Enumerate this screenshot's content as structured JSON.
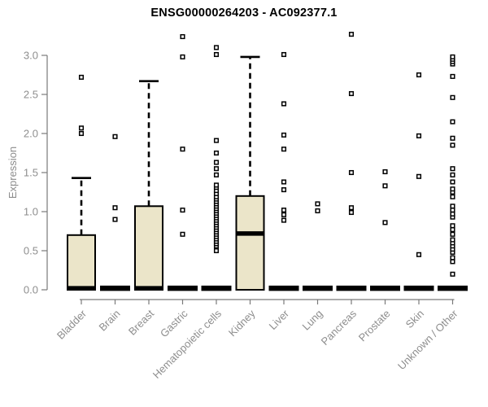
{
  "chart_data": {
    "type": "boxplot",
    "title": "ENSG00000264203 - AC092377.1",
    "ylabel": "Expression",
    "xlabel": "",
    "ylim": [
      0,
      3.0
    ],
    "ytick_labels": [
      "0.0",
      "0.5",
      "1.0",
      "1.5",
      "2.0",
      "2.5",
      "3.0"
    ],
    "grid": false,
    "legend": false,
    "categories": [
      "Bladder",
      "Brain",
      "Breast",
      "Gastric",
      "Hematopoietic cells",
      "Kidney",
      "Liver",
      "Lung",
      "Pancreas",
      "Prostate",
      "Skin",
      "Unknown / Other"
    ],
    "boxes": [
      {
        "category": "Bladder",
        "q1": 0,
        "median": 0.02,
        "q3": 0.7,
        "whisker_low": 0,
        "whisker_high": 1.43,
        "outliers": [
          2.0,
          2.07,
          2.72
        ]
      },
      {
        "category": "Brain",
        "q1": 0,
        "median": 0.02,
        "q3": 0.02,
        "whisker_low": 0,
        "whisker_high": 0.02,
        "outliers": [
          0.9,
          1.05,
          1.96
        ]
      },
      {
        "category": "Breast",
        "q1": 0,
        "median": 0.02,
        "q3": 1.07,
        "whisker_low": 0,
        "whisker_high": 2.67,
        "outliers": []
      },
      {
        "category": "Gastric",
        "q1": 0,
        "median": 0.02,
        "q3": 0.02,
        "whisker_low": 0,
        "whisker_high": 0.02,
        "outliers": [
          0.71,
          1.02,
          1.8,
          2.98,
          3.24
        ]
      },
      {
        "category": "Hematopoietic cells",
        "q1": 0,
        "median": 0.02,
        "q3": 0.02,
        "whisker_low": 0,
        "whisker_high": 0.02,
        "outliers": [
          0.5,
          0.56,
          0.59,
          0.62,
          0.65,
          0.68,
          0.71,
          0.74,
          0.77,
          0.8,
          0.83,
          0.86,
          0.89,
          0.92,
          0.95,
          0.98,
          1.01,
          1.04,
          1.07,
          1.1,
          1.13,
          1.16,
          1.19,
          1.23,
          1.27,
          1.31,
          1.34,
          1.47,
          1.55,
          1.63,
          1.75,
          1.91,
          3.01,
          3.1
        ]
      },
      {
        "category": "Kidney",
        "q1": 0,
        "median": 0.72,
        "q3": 1.2,
        "whisker_low": 0,
        "whisker_high": 2.98,
        "outliers": []
      },
      {
        "category": "Liver",
        "q1": 0,
        "median": 0.02,
        "q3": 0.02,
        "whisker_low": 0,
        "whisker_high": 0.02,
        "outliers": [
          0.89,
          0.96,
          1.02,
          1.28,
          1.38,
          1.8,
          1.98,
          2.38,
          3.01
        ]
      },
      {
        "category": "Lung",
        "q1": 0,
        "median": 0.02,
        "q3": 0.02,
        "whisker_low": 0,
        "whisker_high": 0.02,
        "outliers": [
          1.01,
          1.1
        ]
      },
      {
        "category": "Pancreas",
        "q1": 0,
        "median": 0.02,
        "q3": 0.02,
        "whisker_low": 0,
        "whisker_high": 0.02,
        "outliers": [
          0.99,
          1.05,
          1.5,
          2.51,
          3.27
        ]
      },
      {
        "category": "Prostate",
        "q1": 0,
        "median": 0.02,
        "q3": 0.02,
        "whisker_low": 0,
        "whisker_high": 0.02,
        "outliers": [
          0.86,
          1.33,
          1.51
        ]
      },
      {
        "category": "Skin",
        "q1": 0,
        "median": 0.02,
        "q3": 0.02,
        "whisker_low": 0,
        "whisker_high": 0.02,
        "outliers": [
          0.45,
          1.45,
          1.97,
          2.75
        ]
      },
      {
        "category": "Unknown / Other",
        "q1": 0,
        "median": 0.02,
        "q3": 0.02,
        "whisker_low": 0,
        "whisker_high": 0.02,
        "outliers": [
          0.2,
          0.36,
          0.41,
          0.48,
          0.52,
          0.56,
          0.6,
          0.64,
          0.71,
          0.77,
          0.82,
          0.93,
          0.97,
          1.02,
          1.07,
          1.19,
          1.25,
          1.29,
          1.38,
          1.47,
          1.55,
          1.85,
          1.94,
          2.15,
          2.46,
          2.73,
          2.89,
          2.92,
          2.95,
          2.98
        ]
      }
    ],
    "colors": {
      "box_fill": "#EBE5C9",
      "box_stroke": "#000000",
      "median": "#000000",
      "whisker": "#000000",
      "outlier_fill": "#ffffff",
      "outlier_stroke": "#000000",
      "axis": "#7a7a7a",
      "tick_text": "#8e8e8e",
      "title": "#000000"
    }
  }
}
